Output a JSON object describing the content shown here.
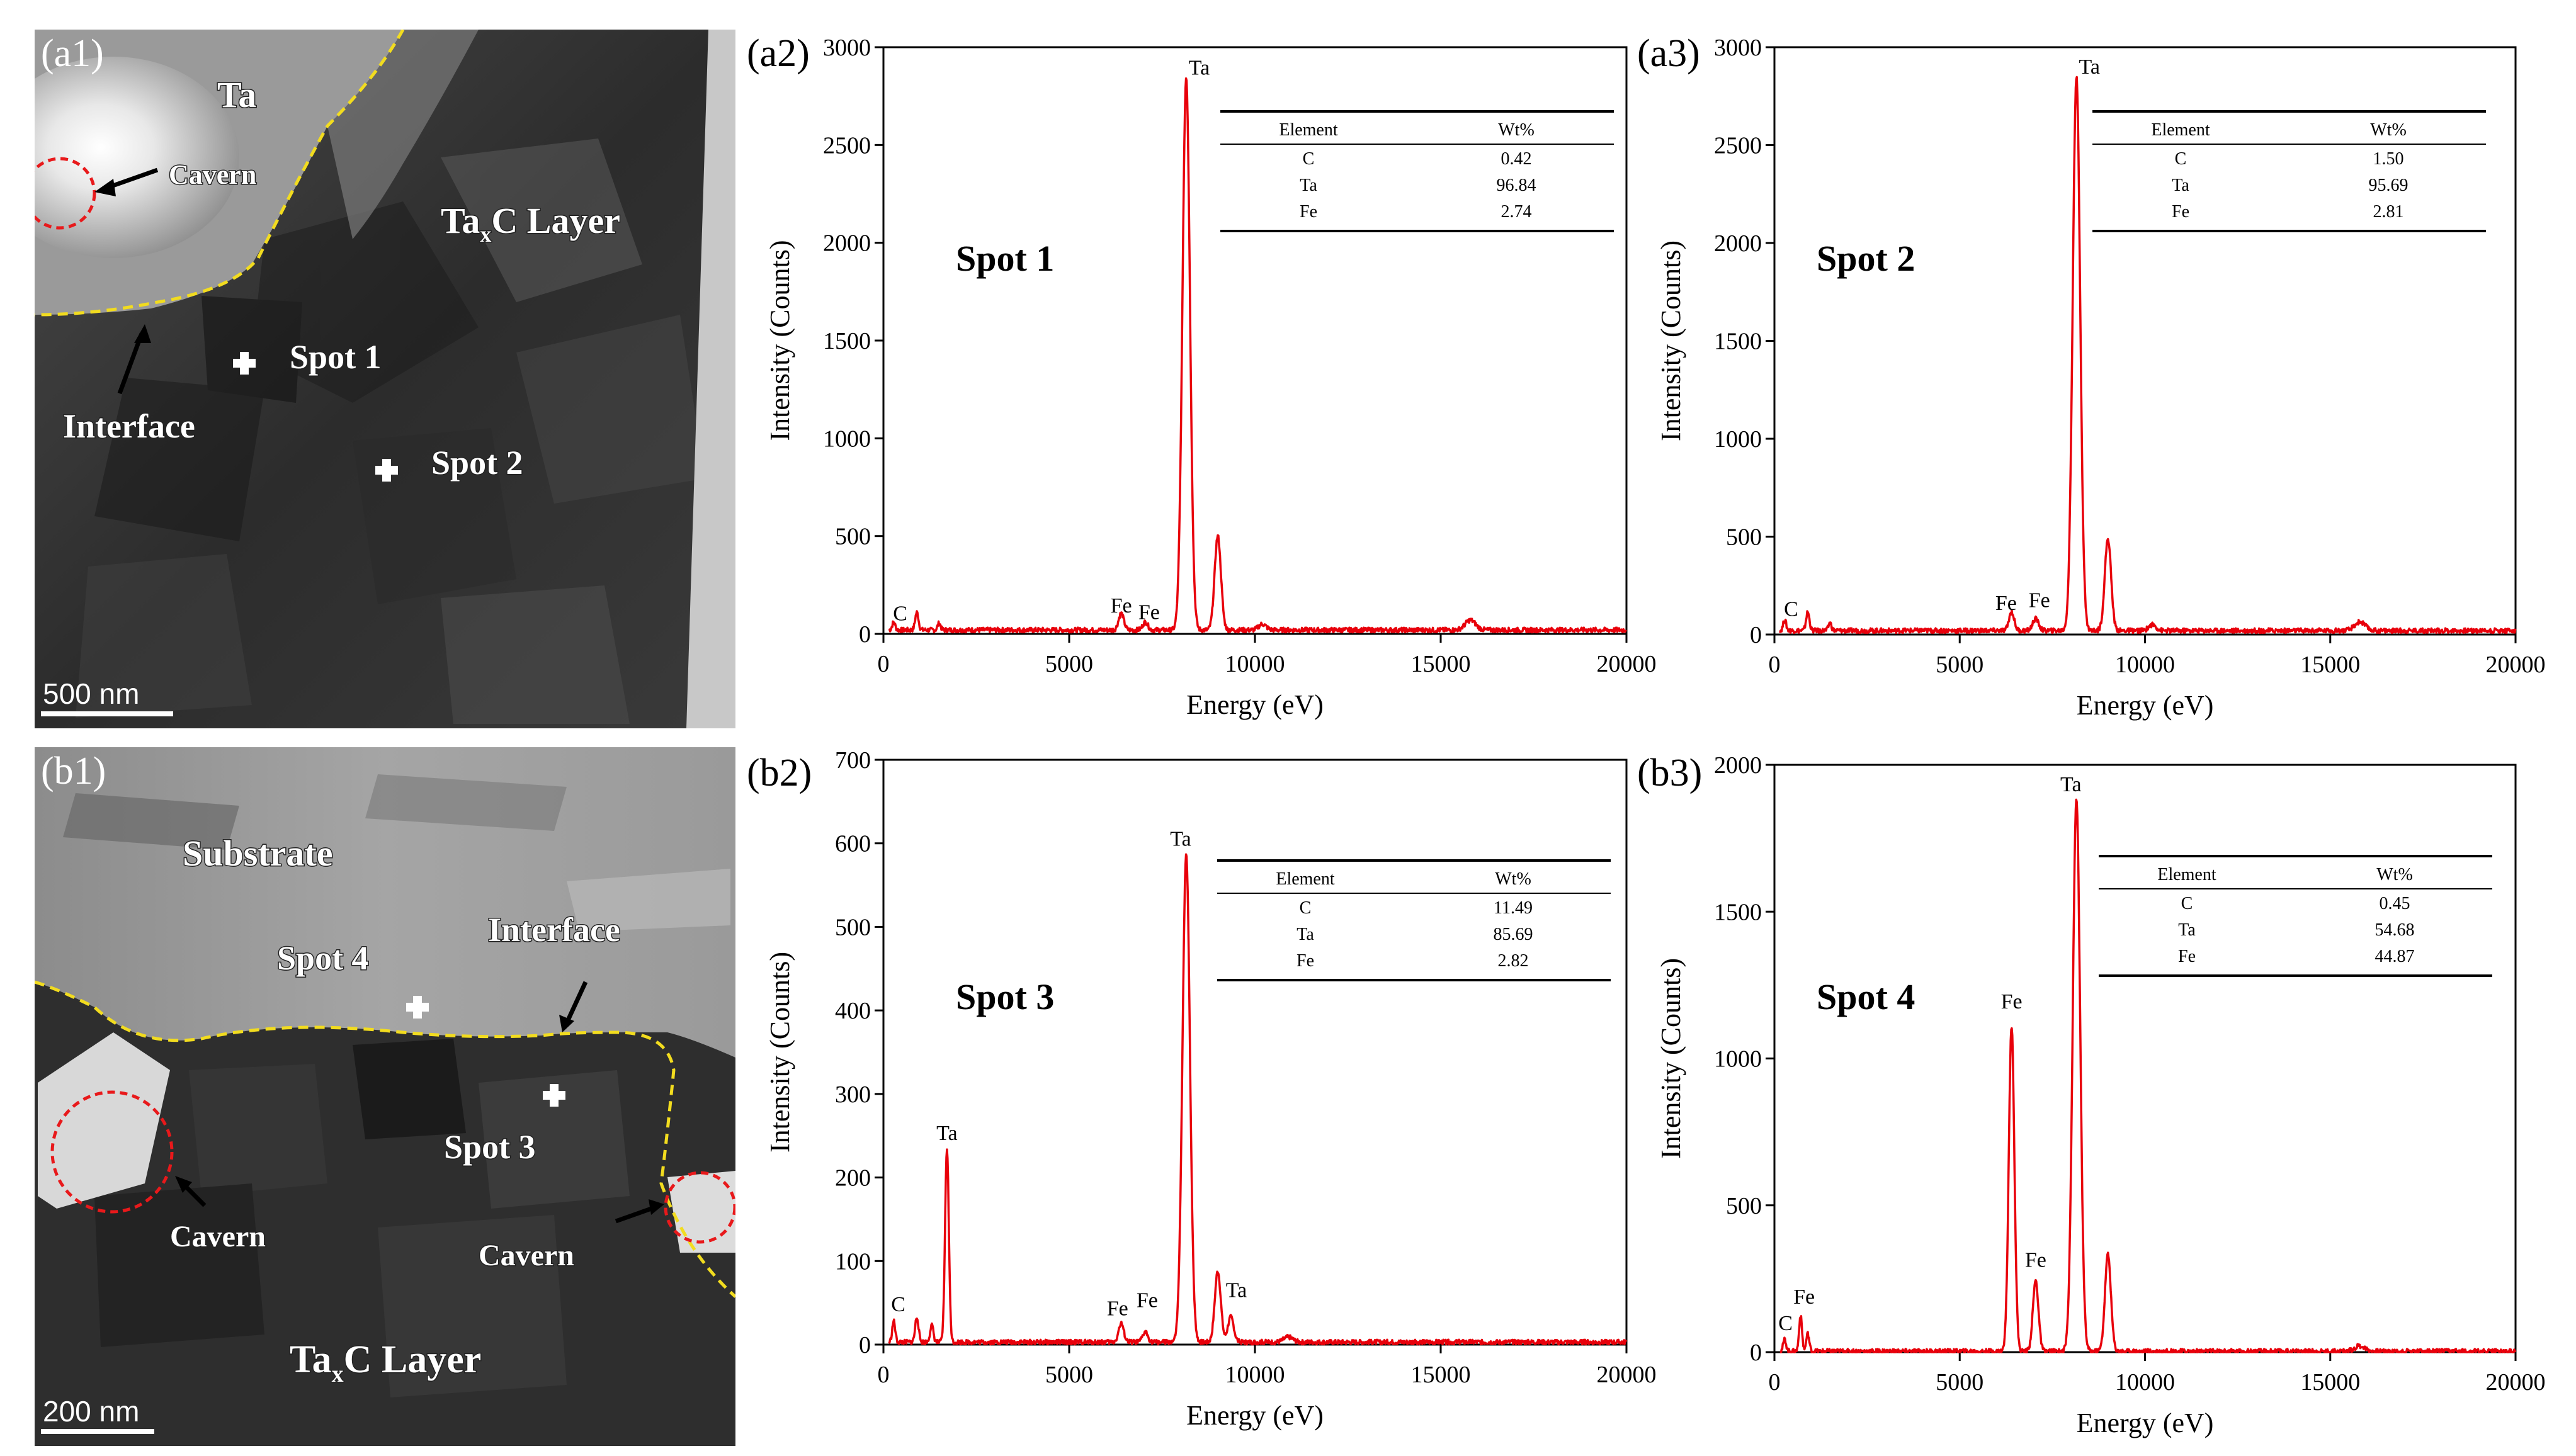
{
  "figure": {
    "tem_panels": [
      {
        "label": "(a1)",
        "scale_bar": "500 nm",
        "annotations": {
          "ta": "Ta",
          "cavern": "Cavern",
          "layer_main": "Ta",
          "layer_sub": "x",
          "layer_rest": "C Layer",
          "interface": "Interface",
          "spot1": "Spot 1",
          "spot2": "Spot 2"
        }
      },
      {
        "label": "(b1)",
        "scale_bar": "200 nm",
        "annotations": {
          "substrate": "Substrate",
          "spot4": "Spot 4",
          "interface": "Interface",
          "spot3": "Spot 3",
          "cavern_left": "Cavern",
          "cavern_right": "Cavern",
          "layer_main": "Ta",
          "layer_sub": "x",
          "layer_rest": "C Layer"
        }
      }
    ],
    "table_headers": {
      "element": "Element",
      "wt": "Wt%"
    }
  },
  "chart_data": [
    {
      "type": "line",
      "panel": "(a2)",
      "spot_label": "Spot 1",
      "xlabel": "Energy (eV)",
      "ylabel": "Intensity (Counts)",
      "xlim": [
        0,
        20000
      ],
      "ylim": [
        0,
        3000
      ],
      "x_ticks": [
        0,
        5000,
        10000,
        15000,
        20000
      ],
      "y_ticks": [
        0,
        500,
        1000,
        1500,
        2000,
        2500,
        3000
      ],
      "line_color": "#e8000b",
      "baseline": 20,
      "peaks": [
        {
          "x": 277,
          "y": 40,
          "w": 40
        },
        {
          "x": 900,
          "y": 90,
          "w": 45
        },
        {
          "x": 1500,
          "y": 35,
          "w": 40
        },
        {
          "x": 6400,
          "y": 85,
          "w": 70
        },
        {
          "x": 7050,
          "y": 40,
          "w": 70
        },
        {
          "x": 8150,
          "y": 2830,
          "w": 100
        },
        {
          "x": 9000,
          "y": 480,
          "w": 85
        },
        {
          "x": 10200,
          "y": 30,
          "w": 100
        },
        {
          "x": 15800,
          "y": 50,
          "w": 140
        }
      ],
      "peak_labels": [
        {
          "text": "C",
          "x": 450,
          "y": 70
        },
        {
          "text": "Fe",
          "x": 6400,
          "y": 110
        },
        {
          "text": "Fe",
          "x": 7150,
          "y": 75
        },
        {
          "text": "Ta",
          "x": 8500,
          "y": 2860
        }
      ],
      "table": [
        {
          "element": "C",
          "wt": "0.42"
        },
        {
          "element": "Ta",
          "wt": "96.84"
        },
        {
          "element": "Fe",
          "wt": "2.74"
        }
      ]
    },
    {
      "type": "line",
      "panel": "(a3)",
      "spot_label": "Spot 2",
      "xlabel": "Energy (eV)",
      "ylabel": "Intensity (Counts)",
      "xlim": [
        0,
        20000
      ],
      "ylim": [
        0,
        3000
      ],
      "x_ticks": [
        0,
        5000,
        10000,
        15000,
        20000
      ],
      "y_ticks": [
        0,
        500,
        1000,
        1500,
        2000,
        2500,
        3000
      ],
      "line_color": "#e8000b",
      "baseline": 20,
      "peaks": [
        {
          "x": 277,
          "y": 55,
          "w": 40
        },
        {
          "x": 900,
          "y": 95,
          "w": 45
        },
        {
          "x": 1500,
          "y": 40,
          "w": 40
        },
        {
          "x": 6400,
          "y": 95,
          "w": 70
        },
        {
          "x": 7050,
          "y": 60,
          "w": 80
        },
        {
          "x": 8150,
          "y": 2830,
          "w": 100
        },
        {
          "x": 9000,
          "y": 470,
          "w": 85
        },
        {
          "x": 10200,
          "y": 30,
          "w": 100
        },
        {
          "x": 15800,
          "y": 45,
          "w": 140
        }
      ],
      "peak_labels": [
        {
          "text": "C",
          "x": 450,
          "y": 95
        },
        {
          "text": "Fe",
          "x": 6250,
          "y": 125
        },
        {
          "text": "Fe",
          "x": 7150,
          "y": 140
        },
        {
          "text": "Ta",
          "x": 8500,
          "y": 2865
        }
      ],
      "table": [
        {
          "element": "C",
          "wt": "1.50"
        },
        {
          "element": "Ta",
          "wt": "95.69"
        },
        {
          "element": "Fe",
          "wt": "2.81"
        }
      ]
    },
    {
      "type": "line",
      "panel": "(b2)",
      "spot_label": "Spot 3",
      "xlabel": "Energy (eV)",
      "ylabel": "Intensity (Counts)",
      "xlim": [
        0,
        20000
      ],
      "ylim": [
        0,
        700
      ],
      "x_ticks": [
        0,
        5000,
        10000,
        15000,
        20000
      ],
      "y_ticks": [
        0,
        100,
        200,
        300,
        400,
        500,
        600,
        700
      ],
      "line_color": "#e8000b",
      "baseline": 3,
      "peaks": [
        {
          "x": 277,
          "y": 25,
          "w": 40
        },
        {
          "x": 900,
          "y": 30,
          "w": 45
        },
        {
          "x": 1300,
          "y": 20,
          "w": 45
        },
        {
          "x": 1710,
          "y": 232,
          "w": 50
        },
        {
          "x": 6400,
          "y": 22,
          "w": 70
        },
        {
          "x": 7050,
          "y": 12,
          "w": 70
        },
        {
          "x": 8150,
          "y": 583,
          "w": 100
        },
        {
          "x": 9000,
          "y": 85,
          "w": 80
        },
        {
          "x": 9350,
          "y": 30,
          "w": 80
        },
        {
          "x": 10900,
          "y": 6,
          "w": 120
        }
      ],
      "peak_labels": [
        {
          "text": "C",
          "x": 400,
          "y": 40
        },
        {
          "text": "Ta",
          "x": 1710,
          "y": 245
        },
        {
          "text": "Fe",
          "x": 6300,
          "y": 35
        },
        {
          "text": "Fe",
          "x": 7100,
          "y": 45
        },
        {
          "text": "Ta",
          "x": 8000,
          "y": 597
        },
        {
          "text": "Ta",
          "x": 9500,
          "y": 57
        }
      ],
      "table": [
        {
          "element": "C",
          "wt": "11.49"
        },
        {
          "element": "Ta",
          "wt": "85.69"
        },
        {
          "element": "Fe",
          "wt": "2.82"
        }
      ]
    },
    {
      "type": "line",
      "panel": "(b3)",
      "spot_label": "Spot 4",
      "xlabel": "Energy (eV)",
      "ylabel": "Intensity (Counts)",
      "xlim": [
        0,
        20000
      ],
      "ylim": [
        0,
        2000
      ],
      "x_ticks": [
        0,
        5000,
        10000,
        15000,
        20000
      ],
      "y_ticks": [
        0,
        500,
        1000,
        1500,
        2000
      ],
      "line_color": "#e8000b",
      "baseline": 3,
      "peaks": [
        {
          "x": 277,
          "y": 40,
          "w": 40
        },
        {
          "x": 705,
          "y": 120,
          "w": 40
        },
        {
          "x": 900,
          "y": 60,
          "w": 40
        },
        {
          "x": 6400,
          "y": 1110,
          "w": 75
        },
        {
          "x": 7050,
          "y": 240,
          "w": 75
        },
        {
          "x": 8150,
          "y": 1880,
          "w": 100
        },
        {
          "x": 9000,
          "y": 330,
          "w": 80
        },
        {
          "x": 15800,
          "y": 18,
          "w": 140
        }
      ],
      "peak_labels": [
        {
          "text": "C",
          "x": 300,
          "y": 75
        },
        {
          "text": "Fe",
          "x": 800,
          "y": 165
        },
        {
          "text": "Fe",
          "x": 6400,
          "y": 1170
        },
        {
          "text": "Fe",
          "x": 7050,
          "y": 290
        },
        {
          "text": "Ta",
          "x": 8000,
          "y": 1910
        }
      ],
      "table": [
        {
          "element": "C",
          "wt": "0.45"
        },
        {
          "element": "Ta",
          "wt": "54.68"
        },
        {
          "element": "Fe",
          "wt": "44.87"
        }
      ]
    }
  ]
}
